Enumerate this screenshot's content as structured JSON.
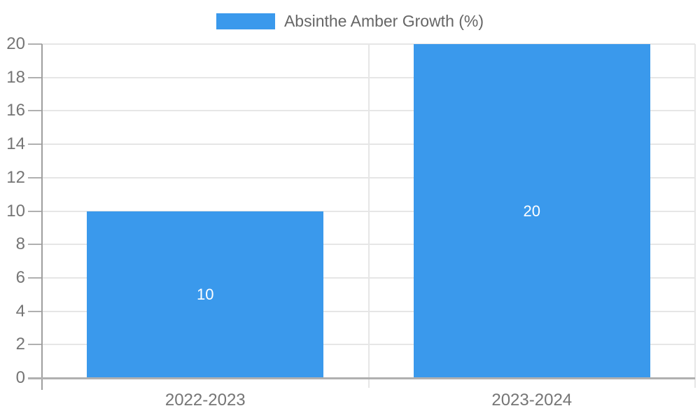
{
  "legend": {
    "label": "Absinthe Amber Growth (%)"
  },
  "chart_data": {
    "type": "bar",
    "title": "Absinthe Amber Growth (%)",
    "categories": [
      "2022-2023",
      "2023-2024"
    ],
    "values": [
      10,
      20
    ],
    "bar_value_labels": [
      "10",
      "20"
    ],
    "xlabel": "",
    "ylabel": "",
    "ylim": [
      0,
      20
    ],
    "ytick_step": 2,
    "yticks": [
      0,
      2,
      4,
      6,
      8,
      10,
      12,
      14,
      16,
      18,
      20
    ],
    "grid": true,
    "legend_position": "top"
  },
  "colors": {
    "bar": "#3a99ec",
    "grid": "#e6e6e6",
    "axis": "#9e9e9e",
    "axis_bottom": "#b0b0b0",
    "tick": "#b0b0b0",
    "tick_label": "#757575",
    "legend_text": "#666666",
    "bar_label": "#ffffff",
    "background": "#ffffff"
  }
}
